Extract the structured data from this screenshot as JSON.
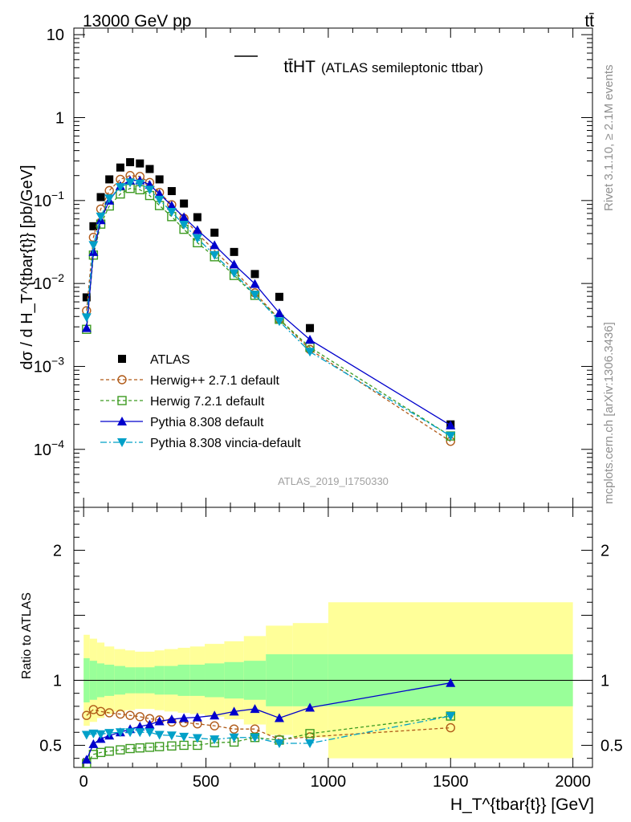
{
  "header": {
    "energy_label": "13000 GeV pp",
    "process_label": "tt̄",
    "plot_title": "tt̄HT",
    "plot_title_detail": "(ATLAS semileptonic ttbar)",
    "analysis_id": "ATLAS_2019_I1750330",
    "rivet_label": "Rivet 3.1.10, ≥ 2.1M events",
    "source_label": "mcplots.cern.ch [arXiv:1306.3436]"
  },
  "colors": {
    "atlas": "#000000",
    "herwig_pp": "#b05a18",
    "herwig7": "#3c9a20",
    "pythia": "#0000cc",
    "vincia": "#00a0c8",
    "band_inner": "#99ff99",
    "band_outer": "#ffff99"
  },
  "chart_data": {
    "type": "scatter",
    "x": [
      12,
      40,
      70,
      105,
      150,
      190,
      230,
      270,
      310,
      360,
      410,
      465,
      535,
      615,
      700,
      800,
      925,
      1500
    ],
    "xlim": [
      -40,
      2080
    ],
    "xticks": [
      0,
      500,
      1000,
      1500,
      2000
    ],
    "xlabel": "H_T^{tbar{t}} [GeV]",
    "main": {
      "ylabel": "dσ / d H_T^{tbar{t}} [pb/GeV]",
      "yscale": "log",
      "ylim": [
        2e-05,
        12
      ],
      "yticks": [
        {
          "value": 10,
          "label": "10"
        },
        {
          "value": 1,
          "label": "1"
        },
        {
          "value": 0.1,
          "label": "10−1"
        },
        {
          "value": 0.01,
          "label": "10−2"
        },
        {
          "value": 0.001,
          "label": "10−3"
        },
        {
          "value": 0.0001,
          "label": "10−4"
        }
      ],
      "series": [
        {
          "name": "ATLAS",
          "key": "atlas",
          "values": [
            0.0068,
            0.049,
            0.11,
            0.18,
            0.25,
            0.29,
            0.28,
            0.24,
            0.18,
            0.13,
            0.092,
            0.063,
            0.041,
            0.024,
            0.013,
            0.0069,
            0.0029,
            0.0002
          ]
        },
        {
          "name": "Herwig++ 2.7.1 default",
          "key": "herwig_pp",
          "values": [
            0.0047,
            0.036,
            0.079,
            0.132,
            0.18,
            0.2,
            0.195,
            0.165,
            0.125,
            0.089,
            0.061,
            0.04,
            0.025,
            0.0145,
            0.0077,
            0.0037,
            0.0016,
            0.000125
          ]
        },
        {
          "name": "Herwig 7.2.1 default",
          "key": "herwig7",
          "values": [
            0.0028,
            0.022,
            0.052,
            0.086,
            0.12,
            0.14,
            0.135,
            0.115,
            0.087,
            0.064,
            0.045,
            0.031,
            0.021,
            0.0125,
            0.0072,
            0.0037,
            0.0017,
            0.000145
          ]
        },
        {
          "name": "Pythia 8.308 default",
          "key": "pythia",
          "values": [
            0.0029,
            0.024,
            0.058,
            0.1,
            0.15,
            0.175,
            0.175,
            0.155,
            0.12,
            0.087,
            0.063,
            0.044,
            0.029,
            0.017,
            0.0099,
            0.0044,
            0.0021,
            0.000195
          ]
        },
        {
          "name": "Pythia 8.308 vincia-default",
          "key": "vincia",
          "values": [
            0.0039,
            0.029,
            0.064,
            0.106,
            0.145,
            0.165,
            0.16,
            0.135,
            0.102,
            0.073,
            0.051,
            0.035,
            0.022,
            0.0133,
            0.0073,
            0.0035,
            0.0015,
            0.000145
          ]
        }
      ]
    },
    "ratio": {
      "ylabel": "Ratio to ATLAS",
      "ylim": [
        0.33,
        2.33
      ],
      "yticks": [
        {
          "value": 0.5,
          "label": "0.5"
        },
        {
          "value": 1,
          "label": "1"
        },
        {
          "value": 2,
          "label": "2"
        }
      ],
      "bins": [
        0,
        25,
        55,
        85,
        125,
        170,
        210,
        250,
        290,
        330,
        385,
        435,
        495,
        575,
        655,
        745,
        855,
        1000,
        2000
      ],
      "band_inner": [
        0.17,
        0.15,
        0.13,
        0.12,
        0.11,
        0.1,
        0.1,
        0.1,
        0.11,
        0.11,
        0.12,
        0.12,
        0.13,
        0.14,
        0.15,
        0.2,
        0.2,
        0.2
      ],
      "band_outer": [
        0.35,
        0.32,
        0.29,
        0.26,
        0.24,
        0.23,
        0.22,
        0.22,
        0.23,
        0.24,
        0.25,
        0.26,
        0.28,
        0.3,
        0.34,
        0.42,
        0.44,
        0.6
      ],
      "series": [
        {
          "name": "Herwig++ 2.7.1 default",
          "key": "herwig_pp",
          "values": [
            0.73,
            0.775,
            0.76,
            0.75,
            0.74,
            0.73,
            0.72,
            0.705,
            0.695,
            0.68,
            0.675,
            0.665,
            0.65,
            0.625,
            0.625,
            0.545,
            0.565,
            0.635
          ]
        },
        {
          "name": "Herwig 7.2.1 default",
          "key": "herwig7",
          "values": [
            0.36,
            0.43,
            0.445,
            0.455,
            0.465,
            0.475,
            0.48,
            0.485,
            0.49,
            0.495,
            0.5,
            0.5,
            0.52,
            0.525,
            0.56,
            0.54,
            0.59,
            0.725
          ]
        },
        {
          "name": "Pythia 8.308 default",
          "key": "pythia",
          "values": [
            0.39,
            0.51,
            0.55,
            0.575,
            0.6,
            0.625,
            0.645,
            0.66,
            0.685,
            0.7,
            0.71,
            0.715,
            0.73,
            0.76,
            0.78,
            0.71,
            0.79,
            0.98
          ]
        },
        {
          "name": "Pythia 8.308 vincia-default",
          "key": "vincia",
          "values": [
            0.58,
            0.59,
            0.585,
            0.595,
            0.6,
            0.6,
            0.6,
            0.6,
            0.58,
            0.575,
            0.565,
            0.555,
            0.545,
            0.56,
            0.56,
            0.515,
            0.515,
            0.725
          ]
        }
      ]
    }
  }
}
